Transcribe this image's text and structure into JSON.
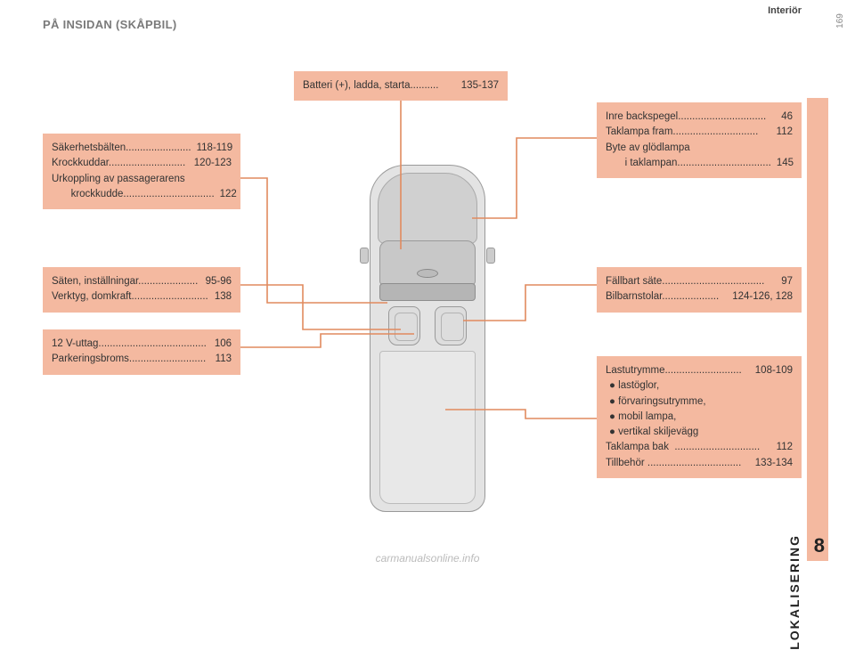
{
  "page": {
    "header_right": "Interiör",
    "title": "PÅ INSIDAN (SKÅPBIL)",
    "section_label": "LOKALISERING",
    "section_number": "8",
    "page_number": "169",
    "footer_url": "carmanualsonline.info"
  },
  "colors": {
    "callout_bg": "#f4b9a0",
    "leader": "#e18a5e",
    "car_body": "#e3e3e3",
    "car_border": "#999999",
    "text": "#333333",
    "title_gray": "#7a7a7a"
  },
  "callouts": {
    "battery": {
      "lines": [
        {
          "label": "Batteri (+), ladda, starta",
          "dots": "..........",
          "page": "135-137"
        }
      ]
    },
    "safety": {
      "lines": [
        {
          "label": "Säkerhetsbälten",
          "dots": ".......................",
          "page": "118-119"
        },
        {
          "label": "Krockkuddar",
          "dots": "...........................",
          "page": "120-123"
        },
        {
          "label": "Urkoppling av passagerarens",
          "dots": "",
          "page": ""
        },
        {
          "label": "krockkudde",
          "dots": "................................",
          "page": "122",
          "indent": true
        }
      ]
    },
    "seats": {
      "lines": [
        {
          "label": "Säten, inställningar",
          "dots": ".....................",
          "page": "95-96"
        },
        {
          "label": "Verktyg, domkraft",
          "dots": "...........................",
          "page": "138"
        }
      ]
    },
    "v12": {
      "lines": [
        {
          "label": "12 V-uttag",
          "dots": "......................................",
          "page": "106"
        },
        {
          "label": "Parkeringsbroms",
          "dots": "...........................",
          "page": "113"
        }
      ]
    },
    "mirror": {
      "lines": [
        {
          "label": "Inre backspegel",
          "dots": "...............................",
          "page": "46"
        },
        {
          "label": "Taklampa fram",
          "dots": "..............................",
          "page": "112"
        },
        {
          "label": "Byte av glödlampa",
          "dots": "",
          "page": ""
        },
        {
          "label": "i taklampan",
          "dots": ".................................",
          "page": "145",
          "indent": true
        }
      ]
    },
    "fold": {
      "lines": [
        {
          "label": "Fällbart säte",
          "dots": "....................................",
          "page": "97"
        },
        {
          "label": "Bilbarnstolar",
          "dots": "....................",
          "page": "124-126, 128"
        }
      ]
    },
    "cargo": {
      "lines": [
        {
          "label": "Lastutrymme",
          "dots": "...........................",
          "page": "108-109"
        },
        {
          "bullet": "● lastöglor,"
        },
        {
          "bullet": "● förvaringsutrymme,"
        },
        {
          "bullet": "● mobil lampa,"
        },
        {
          "bullet": "● vertikal skiljevägg"
        },
        {
          "label": "Taklampa bak",
          "dots": "  ..............................",
          "page": "112"
        },
        {
          "label": "Tillbehör",
          "dots": " .................................",
          "page": "133-134"
        }
      ]
    }
  },
  "leaders": [
    "M450 112 L450 280",
    "M270 200 L300 200 L300 340 L435 340",
    "M270 320 L340 320 L340 370 L450 370",
    "M270 390 L360 390 L360 375 L465 375",
    "M670 155 L580 155 L580 245 L530 245",
    "M670 320 L590 320 L590 360 L520 360",
    "M670 470 L590 470 L590 460 L500 460"
  ]
}
